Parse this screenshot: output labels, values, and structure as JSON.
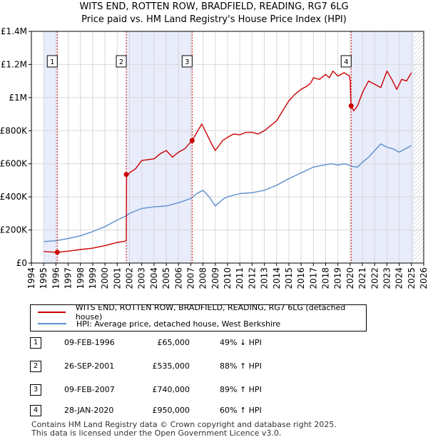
{
  "title_line1": "WITS END, ROTTEN ROW, BRADFIELD, READING, RG7 6LG",
  "title_line2": "Price paid vs. HM Land Registry's House Price Index (HPI)",
  "colors": {
    "price_line": "#cc0000",
    "hpi_line": "#5b8fcc",
    "shade": "#e8ecfb",
    "marker_line": "#cc0000"
  },
  "chart_data": {
    "type": "line",
    "xlim": [
      1994,
      2026
    ],
    "ylim": [
      0,
      1400000
    ],
    "y_ticks": [
      {
        "value": 0,
        "label": "£0"
      },
      {
        "value": 200000,
        "label": "£200K"
      },
      {
        "value": 400000,
        "label": "£400K"
      },
      {
        "value": 600000,
        "label": "£600K"
      },
      {
        "value": 800000,
        "label": "£800K"
      },
      {
        "value": 1000000,
        "label": "£1M"
      },
      {
        "value": 1200000,
        "label": "£1.2M"
      },
      {
        "value": 1400000,
        "label": "£1.4M"
      }
    ],
    "x_ticks": [
      1994,
      1995,
      1996,
      1997,
      1998,
      1999,
      2000,
      2001,
      2002,
      2003,
      2004,
      2005,
      2006,
      2007,
      2008,
      2009,
      2010,
      2011,
      2012,
      2013,
      2014,
      2015,
      2016,
      2017,
      2018,
      2019,
      2020,
      2021,
      2022,
      2023,
      2024,
      2025,
      2026
    ],
    "shaded_spans": [
      [
        1995.0,
        1996.11
      ],
      [
        2001.74,
        2007.11
      ],
      [
        2020.08,
        2025.2
      ]
    ],
    "hatch_start": 2025.2,
    "series": [
      {
        "name": "WITS END, ROTTEN ROW, BRADFIELD, READING, RG7 6LG (detached house)",
        "color": "#cc0000",
        "x": [
          1995.0,
          1996.11,
          1997.0,
          1998.0,
          1999.0,
          2000.0,
          2000.5,
          2001.0,
          2001.5,
          2001.74,
          2001.76,
          2002.0,
          2002.5,
          2003.0,
          2004.0,
          2004.5,
          2005.0,
          2005.5,
          2006.0,
          2006.5,
          2007.11,
          2007.5,
          2007.9,
          2008.3,
          2008.7,
          2009.0,
          2009.2,
          2009.6,
          2010.0,
          2010.5,
          2011.0,
          2011.5,
          2012.0,
          2012.5,
          2013.0,
          2013.5,
          2014.0,
          2014.5,
          2015.0,
          2015.5,
          2016.0,
          2016.5,
          2016.8,
          2017.0,
          2017.5,
          2018.0,
          2018.3,
          2018.6,
          2019.0,
          2019.5,
          2019.95,
          2020.0,
          2020.08,
          2020.3,
          2020.6,
          2021.0,
          2021.5,
          2022.0,
          2022.5,
          2023.0,
          2023.4,
          2023.8,
          2024.2,
          2024.6,
          2025.0
        ],
        "y": [
          70000,
          65000,
          72000,
          82000,
          90000,
          105000,
          115000,
          125000,
          130000,
          135000,
          520000,
          545000,
          570000,
          620000,
          630000,
          660000,
          680000,
          640000,
          670000,
          690000,
          740000,
          790000,
          840000,
          780000,
          720000,
          680000,
          700000,
          740000,
          760000,
          780000,
          775000,
          790000,
          790000,
          780000,
          800000,
          830000,
          860000,
          920000,
          980000,
          1020000,
          1050000,
          1070000,
          1090000,
          1120000,
          1110000,
          1140000,
          1120000,
          1160000,
          1130000,
          1150000,
          1130000,
          1100000,
          950000,
          920000,
          950000,
          1030000,
          1100000,
          1080000,
          1060000,
          1160000,
          1110000,
          1050000,
          1110000,
          1100000,
          1150000
        ]
      },
      {
        "name": "HPI: Average price, detached house, West Berkshire",
        "color": "#5b8fcc",
        "x": [
          1995.0,
          1996.0,
          1997.0,
          1998.0,
          1999.0,
          2000.0,
          2001.0,
          2001.74,
          2002.0,
          2003.0,
          2004.0,
          2005.0,
          2006.0,
          2007.0,
          2007.5,
          2008.0,
          2008.5,
          2009.0,
          2009.3,
          2009.7,
          2010.0,
          2011.0,
          2012.0,
          2013.0,
          2014.0,
          2015.0,
          2016.0,
          2017.0,
          2018.0,
          2018.5,
          2019.0,
          2019.5,
          2020.0,
          2020.08,
          2020.6,
          2021.0,
          2021.5,
          2022.0,
          2022.5,
          2023.0,
          2023.5,
          2024.0,
          2024.5,
          2025.0
        ],
        "y": [
          130000,
          135000,
          148000,
          165000,
          190000,
          220000,
          260000,
          285000,
          300000,
          330000,
          340000,
          345000,
          365000,
          390000,
          420000,
          440000,
          400000,
          345000,
          365000,
          390000,
          400000,
          420000,
          425000,
          440000,
          470000,
          510000,
          545000,
          580000,
          595000,
          600000,
          592000,
          600000,
          590000,
          585000,
          580000,
          610000,
          640000,
          680000,
          720000,
          700000,
          690000,
          670000,
          690000,
          710000
        ]
      }
    ],
    "markers": [
      {
        "label": "1",
        "x": 1996.11,
        "y": 65000
      },
      {
        "label": "2",
        "x": 2001.74,
        "y": 535000
      },
      {
        "label": "3",
        "x": 2007.11,
        "y": 740000
      },
      {
        "label": "4",
        "x": 2020.08,
        "y": 950000
      }
    ]
  },
  "legend": {
    "price_label": "WITS END, ROTTEN ROW, BRADFIELD, READING, RG7 6LG (detached house)",
    "hpi_label": "HPI: Average price, detached house, West Berkshire"
  },
  "transactions": [
    {
      "num": "1",
      "date": "09-FEB-1996",
      "price": "£65,000",
      "hpi": "49% ↓ HPI"
    },
    {
      "num": "2",
      "date": "26-SEP-2001",
      "price": "£535,000",
      "hpi": "88% ↑ HPI"
    },
    {
      "num": "3",
      "date": "09-FEB-2007",
      "price": "£740,000",
      "hpi": "89% ↑ HPI"
    },
    {
      "num": "4",
      "date": "28-JAN-2020",
      "price": "£950,000",
      "hpi": "60% ↑ HPI"
    }
  ],
  "footer_line1": "Contains HM Land Registry data © Crown copyright and database right 2025.",
  "footer_line2": "This data is licensed under the Open Government Licence v3.0."
}
